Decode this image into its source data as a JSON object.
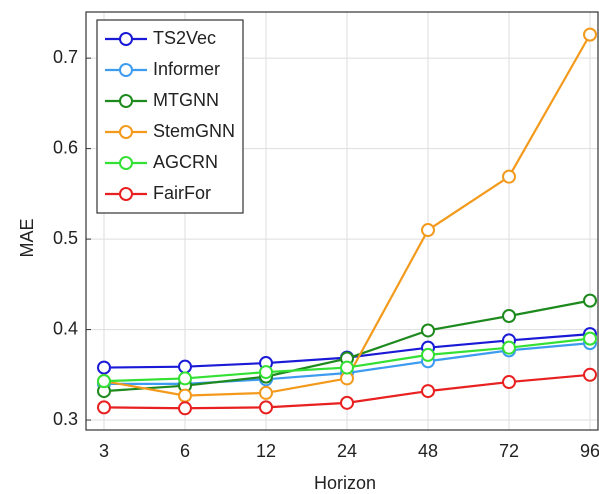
{
  "chart_data": {
    "type": "line",
    "xlabel": "Horizon",
    "ylabel": "MAE",
    "categories": [
      "3",
      "6",
      "12",
      "24",
      "48",
      "72",
      "96"
    ],
    "series": [
      {
        "name": "TS2Vec",
        "color": "#1a1ad6",
        "values": [
          0.358,
          0.359,
          0.363,
          0.369,
          0.38,
          0.388,
          0.395
        ]
      },
      {
        "name": "Informer",
        "color": "#3d9bf0",
        "values": [
          0.34,
          0.34,
          0.345,
          0.352,
          0.365,
          0.377,
          0.385
        ]
      },
      {
        "name": "MTGNN",
        "color": "#1e8a1e",
        "values": [
          0.332,
          0.338,
          0.348,
          0.368,
          0.399,
          0.415,
          0.432
        ]
      },
      {
        "name": "StemGNN",
        "color": "#f39a1c",
        "values": [
          0.343,
          0.327,
          0.33,
          0.346,
          0.51,
          0.569,
          0.726
        ]
      },
      {
        "name": "AGCRN",
        "color": "#33e033",
        "values": [
          0.343,
          0.346,
          0.353,
          0.358,
          0.372,
          0.38,
          0.39
        ]
      },
      {
        "name": "FairFor",
        "color": "#e82020",
        "values": [
          0.314,
          0.313,
          0.314,
          0.319,
          0.332,
          0.342,
          0.35
        ]
      }
    ],
    "ylim": [
      0.289,
      0.751
    ],
    "yticks": [
      0.3,
      0.4,
      0.5,
      0.6,
      0.7
    ],
    "grid": true,
    "legend": "upper left"
  }
}
